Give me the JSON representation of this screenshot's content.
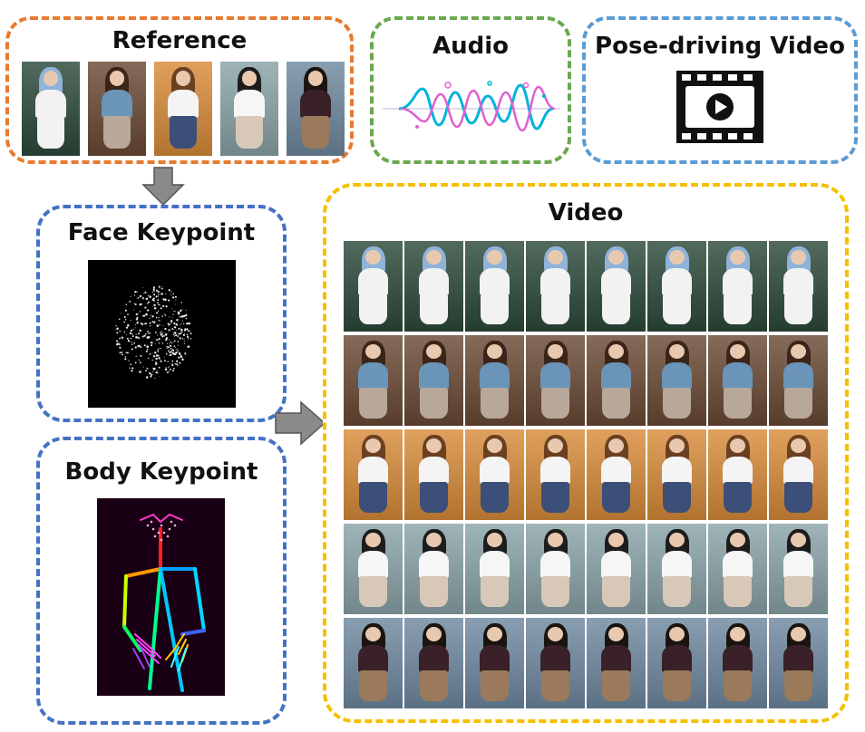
{
  "panels": {
    "reference": {
      "title": "Reference",
      "color": "#e87a30"
    },
    "audio": {
      "title": "Audio",
      "color": "#6aa84f"
    },
    "pose_video": {
      "title": "Pose-driving Video",
      "color": "#5b9bd5"
    },
    "face_keypoint": {
      "title": "Face Keypoint",
      "color": "#4472c4"
    },
    "body_keypoint": {
      "title": "Body Keypoint",
      "color": "#4472c4"
    },
    "video": {
      "title": "Video",
      "color": "#f5c000"
    }
  },
  "icons": {
    "audio": "audio-waveform-icon",
    "pose_video": "video-film-play-icon",
    "arrow_down": "arrow-down-icon",
    "arrow_right": "arrow-right-icon"
  },
  "reference_images": [
    {
      "name": "blue-hair-girl",
      "bg": "#2c4a3a",
      "hair": "#8fb3d9",
      "top": "#f2f2f2",
      "bottom": "#f2f2f2"
    },
    {
      "name": "brown-hair-tie-girl",
      "bg": "#6b4a35",
      "hair": "#3b2418",
      "top": "#6a94b8",
      "bottom": "#b8a89a"
    },
    {
      "name": "market-woman",
      "bg": "#d98c3a",
      "hair": "#6b4020",
      "top": "#f4f4f4",
      "bottom": "#3b4f78"
    },
    {
      "name": "classroom-girl",
      "bg": "#8aa4a8",
      "hair": "#1c1c1c",
      "top": "#f6f6f6",
      "bottom": "#d8c8b8"
    },
    {
      "name": "mountain-lake-girl",
      "bg": "#6f8aa0",
      "hair": "#1a1410",
      "top": "#3a2028",
      "bottom": "#9a7a5a"
    }
  ],
  "video_rows": [
    {
      "subject": "blue-hair-girl",
      "frames": 8
    },
    {
      "subject": "brown-hair-tie-girl",
      "frames": 8
    },
    {
      "subject": "market-woman",
      "frames": 8
    },
    {
      "subject": "classroom-girl",
      "frames": 8
    },
    {
      "subject": "mountain-lake-girl",
      "frames": 8
    }
  ]
}
